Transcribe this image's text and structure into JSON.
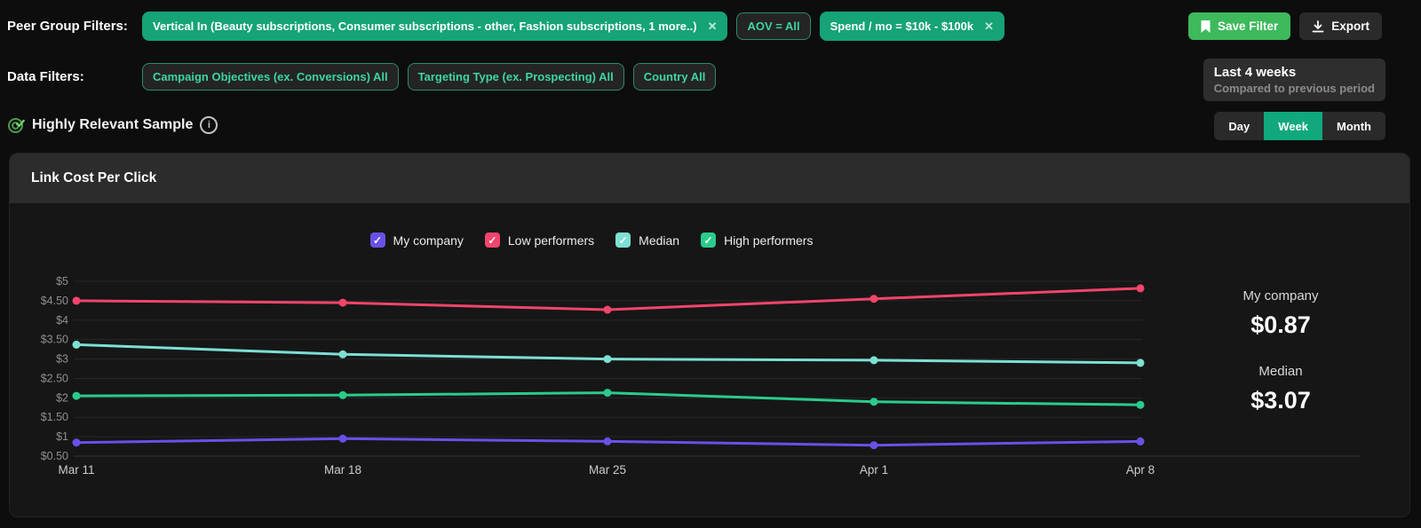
{
  "peer_group_filters": {
    "label": "Peer Group Filters:",
    "chips": [
      {
        "text": "Vertical In (Beauty subscriptions, Consumer subscriptions - other, Fashion subscriptions, 1 more..)",
        "style": "filled",
        "closable": true
      },
      {
        "text": "AOV = All",
        "style": "outlined",
        "closable": false
      },
      {
        "text": "Spend / mo = $10k - $100k",
        "style": "filled",
        "closable": true
      }
    ],
    "save_filter_label": "Save Filter",
    "export_label": "Export"
  },
  "data_filters": {
    "label": "Data Filters:",
    "chips": [
      {
        "text": "Campaign Objectives (ex. Conversions) All",
        "style": "outlined",
        "closable": false
      },
      {
        "text": "Targeting Type (ex. Prospecting) All",
        "style": "outlined",
        "closable": false
      },
      {
        "text": "Country All",
        "style": "outlined",
        "closable": false
      }
    ]
  },
  "period": {
    "title": "Last 4 weeks",
    "subtitle": "Compared to previous period"
  },
  "sample": {
    "label": "Highly Relevant Sample"
  },
  "granularity": {
    "options": [
      "Day",
      "Week",
      "Month"
    ],
    "selected": "Week"
  },
  "panel": {
    "title": "Link Cost Per Click"
  },
  "stats": {
    "items": [
      {
        "label": "My company",
        "value": "$0.87"
      },
      {
        "label": "Median",
        "value": "$3.07"
      }
    ]
  },
  "colors": {
    "accent_green": "#15a377",
    "save_button_green": "#3eb95c",
    "toggle_active_green": "#10a87c",
    "chip_outline_text": "#3dd5a0"
  },
  "chart_data": {
    "type": "line",
    "title": "Link Cost Per Click",
    "x": [
      "Mar 11",
      "Mar 18",
      "Mar 25",
      "Apr 1",
      "Apr 8"
    ],
    "series": [
      {
        "name": "My company",
        "color": "#6a50e8",
        "checked": true,
        "values": [
          0.85,
          0.95,
          0.88,
          0.78,
          0.88
        ]
      },
      {
        "name": "Low performers",
        "color": "#f2456b",
        "checked": true,
        "values": [
          4.5,
          4.45,
          4.27,
          4.55,
          4.82
        ]
      },
      {
        "name": "Median",
        "color": "#7ce0d3",
        "checked": true,
        "values": [
          3.37,
          3.12,
          3.0,
          2.97,
          2.9
        ]
      },
      {
        "name": "High performers",
        "color": "#2bcb8c",
        "checked": true,
        "values": [
          2.05,
          2.07,
          2.13,
          1.9,
          1.82
        ]
      }
    ],
    "ylim": [
      0.5,
      5
    ],
    "ytick_step": 0.5,
    "ytick_labels_top_to_bottom": [
      "$5",
      "$4.50",
      "$4",
      "$3.50",
      "$3",
      "$2.50",
      "$2",
      "$1.50",
      "$1",
      "$0.50"
    ],
    "grid": true,
    "legend_position": "top-center"
  }
}
